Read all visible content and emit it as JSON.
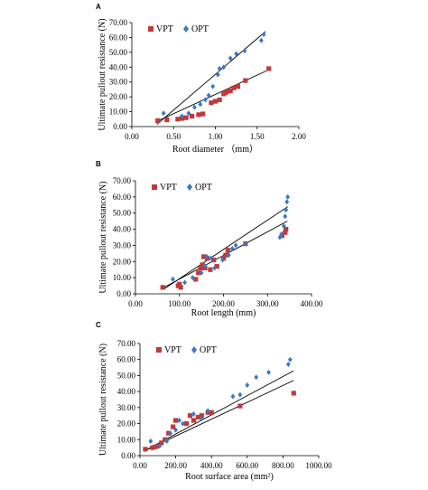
{
  "colors": {
    "vpt": "#c0393b",
    "opt": "#3b78c3",
    "axis": "#000000",
    "fit": "#000000"
  },
  "chart_data": [
    {
      "type": "scatter",
      "panel": "A",
      "xlabel": "Root diameter （mm）",
      "ylabel": "Ultimate pullout resistance (N)",
      "xlim": [
        0,
        2
      ],
      "ylim": [
        0,
        70
      ],
      "xticks": [
        "0.00",
        "0.50",
        "1.00",
        "1.50",
        "2.00"
      ],
      "yticks": [
        "0.00",
        "10.00",
        "20.00",
        "30.00",
        "40.00",
        "50.00",
        "60.00",
        "70.00"
      ],
      "xtick_values": [
        0,
        0.5,
        1,
        1.5,
        2
      ],
      "ytick_values": [
        0,
        10,
        20,
        30,
        40,
        50,
        60,
        70
      ],
      "legend_position": "top-left",
      "series": [
        {
          "name": "VPT",
          "marker": "square",
          "points": [
            [
              0.31,
              4
            ],
            [
              0.42,
              4.5
            ],
            [
              0.55,
              5
            ],
            [
              0.6,
              5.5
            ],
            [
              0.65,
              6
            ],
            [
              0.72,
              7
            ],
            [
              0.8,
              8
            ],
            [
              0.85,
              8.5
            ],
            [
              0.95,
              16
            ],
            [
              1.0,
              17
            ],
            [
              1.05,
              18
            ],
            [
              1.1,
              22
            ],
            [
              1.13,
              23
            ],
            [
              1.15,
              24
            ],
            [
              1.18,
              24
            ],
            [
              1.22,
              26
            ],
            [
              1.27,
              27
            ],
            [
              1.36,
              31
            ],
            [
              1.64,
              39
            ]
          ],
          "fit": [
            [
              0.3,
              3.5
            ],
            [
              1.65,
              38.5
            ]
          ]
        },
        {
          "name": "OPT",
          "marker": "diamond",
          "points": [
            [
              0.38,
              9
            ],
            [
              0.6,
              7
            ],
            [
              0.68,
              9
            ],
            [
              0.75,
              13
            ],
            [
              0.82,
              15
            ],
            [
              0.88,
              18
            ],
            [
              0.92,
              21
            ],
            [
              0.97,
              27
            ],
            [
              1.03,
              35
            ],
            [
              1.05,
              39
            ],
            [
              1.1,
              40
            ],
            [
              1.18,
              46
            ],
            [
              1.25,
              49
            ],
            [
              1.35,
              51
            ],
            [
              1.55,
              58
            ],
            [
              1.58,
              62
            ]
          ],
          "fit": [
            [
              0.3,
              1.5
            ],
            [
              1.6,
              64
            ]
          ]
        }
      ]
    },
    {
      "type": "scatter",
      "panel": "B",
      "xlabel": "Root length (mm)",
      "ylabel": "Ultimate pullout resistance (N)",
      "xlim": [
        0,
        400
      ],
      "ylim": [
        0,
        70
      ],
      "xticks": [
        "0.00",
        "100.00",
        "200.00",
        "300.00",
        "400.00"
      ],
      "yticks": [
        "0.00",
        "10.00",
        "20.00",
        "30.00",
        "40.00",
        "50.00",
        "60.00",
        "70.00"
      ],
      "xtick_values": [
        0,
        100,
        200,
        300,
        400
      ],
      "ytick_values": [
        0,
        10,
        20,
        30,
        40,
        50,
        60,
        70
      ],
      "legend_position": "top-left",
      "series": [
        {
          "name": "VPT",
          "marker": "square",
          "points": [
            [
              62,
              4
            ],
            [
              97,
              5
            ],
            [
              100,
              6
            ],
            [
              103,
              4
            ],
            [
              137,
              9
            ],
            [
              143,
              13
            ],
            [
              148,
              16
            ],
            [
              152,
              18
            ],
            [
              155,
              23
            ],
            [
              158,
              16
            ],
            [
              163,
              22
            ],
            [
              170,
              15
            ],
            [
              178,
              21
            ],
            [
              185,
              17
            ],
            [
              200,
              22
            ],
            [
              205,
              24
            ],
            [
              210,
              27
            ],
            [
              250,
              31
            ],
            [
              333,
              36
            ],
            [
              340,
              38
            ],
            [
              342,
              40
            ]
          ],
          "fit": [
            [
              65,
              4
            ],
            [
              345,
              45
            ]
          ]
        },
        {
          "name": "OPT",
          "marker": "diamond",
          "points": [
            [
              85,
              9
            ],
            [
              112,
              7
            ],
            [
              130,
              10
            ],
            [
              150,
              13
            ],
            [
              158,
              17
            ],
            [
              162,
              23
            ],
            [
              172,
              22
            ],
            [
              180,
              16
            ],
            [
              198,
              21
            ],
            [
              212,
              24
            ],
            [
              220,
              28
            ],
            [
              228,
              30
            ],
            [
              250,
              31
            ],
            [
              328,
              35
            ],
            [
              332,
              37
            ],
            [
              337,
              42
            ],
            [
              340,
              48
            ],
            [
              342,
              52
            ],
            [
              344,
              57
            ],
            [
              346,
              60
            ]
          ],
          "fit": [
            [
              65,
              3
            ],
            [
              346,
              54
            ]
          ]
        }
      ]
    },
    {
      "type": "scatter",
      "panel": "C",
      "xlabel": "Root surface area (mm²)",
      "ylabel": "Ultimate pullout resistance (N)",
      "xlim": [
        0,
        1000
      ],
      "ylim": [
        0,
        70
      ],
      "xticks": [
        "0.00",
        "200.00",
        "400.00",
        "600.00",
        "800.00",
        "1000.00"
      ],
      "yticks": [
        "0.00",
        "10.00",
        "20.00",
        "30.00",
        "40.00",
        "50.00",
        "60.00",
        "70.00"
      ],
      "xtick_values": [
        0,
        200,
        400,
        600,
        800,
        1000
      ],
      "ytick_values": [
        0,
        10,
        20,
        30,
        40,
        50,
        60,
        70
      ],
      "legend_position": "top-left",
      "series": [
        {
          "name": "VPT",
          "marker": "square",
          "points": [
            [
              30,
              4
            ],
            [
              70,
              5
            ],
            [
              85,
              5.5
            ],
            [
              100,
              6
            ],
            [
              120,
              8
            ],
            [
              140,
              10
            ],
            [
              160,
              14
            ],
            [
              185,
              18
            ],
            [
              200,
              22
            ],
            [
              260,
              20
            ],
            [
              280,
              25
            ],
            [
              300,
              22
            ],
            [
              325,
              24
            ],
            [
              345,
              25
            ],
            [
              380,
              27
            ],
            [
              400,
              27
            ],
            [
              560,
              31
            ],
            [
              860,
              39
            ]
          ],
          "fit": [
            [
              25,
              3
            ],
            [
              860,
              47
            ]
          ]
        },
        {
          "name": "OPT",
          "marker": "diamond",
          "points": [
            [
              60,
              9
            ],
            [
              110,
              6
            ],
            [
              150,
              9
            ],
            [
              170,
              14
            ],
            [
              200,
              16
            ],
            [
              220,
              22
            ],
            [
              240,
              20
            ],
            [
              300,
              26
            ],
            [
              345,
              23
            ],
            [
              380,
              28
            ],
            [
              520,
              37
            ],
            [
              560,
              38
            ],
            [
              600,
              44
            ],
            [
              650,
              49
            ],
            [
              720,
              52
            ],
            [
              830,
              57
            ],
            [
              840,
              60
            ]
          ],
          "fit": [
            [
              25,
              3
            ],
            [
              860,
              53
            ]
          ]
        }
      ]
    }
  ],
  "legend_labels": {
    "vpt": "VPT",
    "opt": "OPT"
  }
}
